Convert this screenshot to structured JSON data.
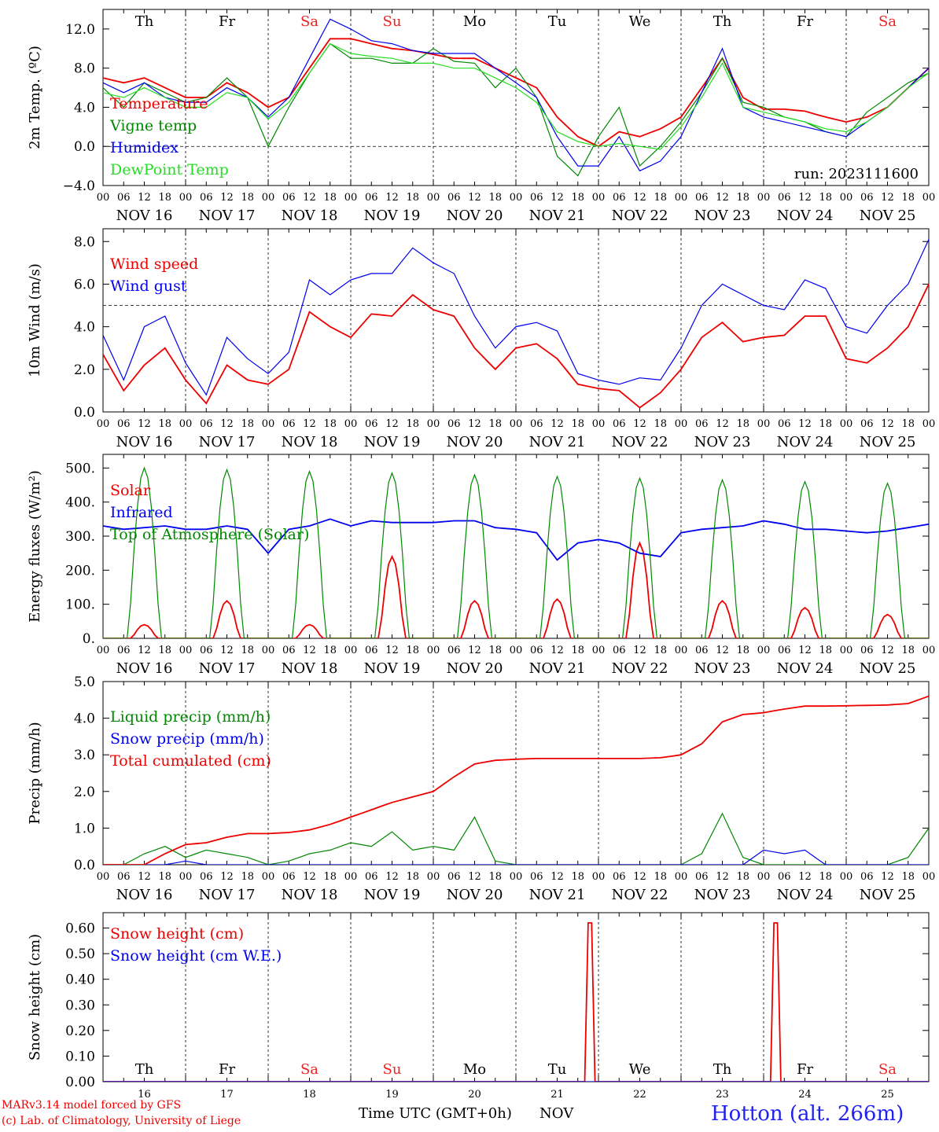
{
  "footer": {
    "credit_line1": "MARv3.14 model forced by GFS",
    "credit_line2": "(c) Lab. of Climatology, University of Liege",
    "xlabel": "Time UTC (GMT+0h)",
    "month": "NOV",
    "station": "Hotton (alt. 266m)"
  },
  "colors": {
    "red": "#ee0000",
    "green": "#008800",
    "blue": "#0000ee",
    "lightgreen": "#22dd22",
    "weekend": "#ee2222"
  },
  "chart_data": [
    {
      "type": "line",
      "id": "temperature",
      "ylabel": "2m Temp. (ºC)",
      "ylim": [
        -4,
        14
      ],
      "yticks": [
        -4,
        0,
        4,
        8,
        12
      ],
      "ytick_labels": [
        "−4.0",
        "0.0",
        "4.0",
        "8.0",
        "12.0"
      ],
      "ref_line": 0,
      "weekdays": [
        "Th",
        "Fr",
        "Sa",
        "Su",
        "Mo",
        "Tu",
        "We",
        "Th",
        "Fr",
        "Sa"
      ],
      "weekend_days": [
        2,
        3,
        9
      ],
      "day_labels": [
        "NOV 16",
        "NOV 17",
        "NOV 18",
        "NOV 19",
        "NOV 20",
        "NOV 21",
        "NOV 22",
        "NOV 23",
        "NOV 24",
        "NOV 25"
      ],
      "hour_labels": [
        "00",
        "06",
        "12",
        "18"
      ],
      "annotation": "run: 2023111600",
      "x_hours": [
        0,
        6,
        12,
        18,
        24,
        30,
        36,
        42,
        48,
        54,
        60,
        66,
        72,
        78,
        84,
        90,
        96,
        102,
        108,
        114,
        120,
        126,
        132,
        138,
        144,
        150,
        156,
        162,
        168,
        174,
        180,
        186,
        192,
        198,
        204,
        210,
        216,
        222,
        228,
        234,
        240
      ],
      "series": [
        {
          "name": "Temperature",
          "color": "red",
          "values": [
            7.0,
            6.5,
            7.0,
            6.0,
            5.0,
            5.0,
            6.5,
            5.5,
            4.0,
            5.0,
            8.0,
            11.0,
            11.0,
            10.5,
            10.0,
            9.8,
            9.4,
            9.0,
            9.0,
            8.0,
            7.0,
            6.0,
            3.0,
            1.0,
            0.0,
            1.5,
            1.0,
            1.8,
            3.0,
            6.0,
            9.0,
            5.0,
            3.8,
            3.8,
            3.6,
            3.0,
            2.5,
            3.0,
            4.0,
            6.0,
            8.0
          ]
        },
        {
          "name": "Vigne temp",
          "color": "green",
          "values": [
            6.0,
            4.0,
            6.5,
            5.5,
            4.5,
            5.0,
            7.0,
            5.0,
            0.0,
            4.0,
            7.5,
            10.5,
            9.0,
            9.0,
            8.5,
            8.5,
            10.0,
            8.7,
            8.5,
            6.0,
            8.0,
            5.0,
            -1.0,
            -3.0,
            1.0,
            4.0,
            -2.0,
            0.0,
            2.5,
            5.5,
            9.0,
            4.5,
            4.0,
            3.0,
            2.5,
            1.5,
            1.0,
            3.5,
            5.0,
            6.5,
            7.5
          ]
        },
        {
          "name": "Humidex",
          "color": "blue",
          "values": [
            6.5,
            5.5,
            6.5,
            5.0,
            4.5,
            4.5,
            6.0,
            5.0,
            3.0,
            5.0,
            9.0,
            13.0,
            12.0,
            10.8,
            10.5,
            9.8,
            9.5,
            9.5,
            9.5,
            8.0,
            6.5,
            5.0,
            1.0,
            -2.0,
            -2.0,
            1.0,
            -2.5,
            -1.5,
            1.0,
            5.5,
            10.0,
            4.0,
            3.0,
            2.5,
            2.0,
            1.5,
            1.0,
            2.5,
            4.0,
            6.0,
            8.0
          ]
        },
        {
          "name": "DewPoint Temp",
          "color": "lightgreen",
          "values": [
            5.5,
            5.0,
            6.0,
            5.0,
            4.0,
            4.0,
            5.5,
            5.0,
            2.8,
            4.5,
            7.5,
            10.5,
            9.5,
            9.2,
            9.0,
            8.5,
            8.5,
            8.0,
            8.0,
            7.0,
            6.0,
            4.5,
            1.5,
            0.5,
            0.0,
            0.3,
            0.0,
            -0.3,
            2.0,
            5.0,
            8.5,
            4.0,
            3.5,
            3.0,
            2.5,
            1.8,
            1.5,
            2.5,
            4.0,
            6.0,
            7.5
          ]
        }
      ]
    },
    {
      "type": "line",
      "id": "wind",
      "ylabel": "10m Wind (m/s)",
      "ylim": [
        0,
        8.6
      ],
      "yticks": [
        0,
        2,
        4,
        6,
        8
      ],
      "ytick_labels": [
        "0.0",
        "2.0",
        "4.0",
        "6.0",
        "8.0"
      ],
      "ref_line": 5,
      "day_labels": [
        "NOV 16",
        "NOV 17",
        "NOV 18",
        "NOV 19",
        "NOV 20",
        "NOV 21",
        "NOV 22",
        "NOV 23",
        "NOV 24",
        "NOV 25"
      ],
      "hour_labels": [
        "00",
        "06",
        "12",
        "18"
      ],
      "x_hours": [
        0,
        6,
        12,
        18,
        24,
        30,
        36,
        42,
        48,
        54,
        60,
        66,
        72,
        78,
        84,
        90,
        96,
        102,
        108,
        114,
        120,
        126,
        132,
        138,
        144,
        150,
        156,
        162,
        168,
        174,
        180,
        186,
        192,
        198,
        204,
        210,
        216,
        222,
        228,
        234,
        240
      ],
      "series": [
        {
          "name": "Wind speed",
          "color": "red",
          "values": [
            2.7,
            1.0,
            2.2,
            3.0,
            1.5,
            0.4,
            2.2,
            1.5,
            1.3,
            2.0,
            4.7,
            4.0,
            3.5,
            4.6,
            4.5,
            5.5,
            4.8,
            4.5,
            3.0,
            2.0,
            3.0,
            3.2,
            2.5,
            1.3,
            1.1,
            1.0,
            0.2,
            0.9,
            2.0,
            3.5,
            4.2,
            3.3,
            3.5,
            3.6,
            4.5,
            4.5,
            2.5,
            2.3,
            3.0,
            4.0,
            6.0
          ]
        },
        {
          "name": "Wind gust",
          "color": "blue",
          "values": [
            3.6,
            1.5,
            4.0,
            4.5,
            2.3,
            0.8,
            3.5,
            2.5,
            1.8,
            2.8,
            6.2,
            5.5,
            6.2,
            6.5,
            6.5,
            7.7,
            7.0,
            6.5,
            4.5,
            3.0,
            4.0,
            4.2,
            3.8,
            1.8,
            1.5,
            1.3,
            1.6,
            1.5,
            3.0,
            5.0,
            6.0,
            5.5,
            5.0,
            4.8,
            6.2,
            5.8,
            4.0,
            3.7,
            5.0,
            6.0,
            8.1
          ]
        }
      ]
    },
    {
      "type": "line",
      "id": "energy",
      "ylabel": "Energy fluxes (W/m²)",
      "ylim": [
        0,
        540
      ],
      "yticks": [
        0,
        100,
        200,
        300,
        400,
        500
      ],
      "ytick_labels": [
        "0.",
        "100.",
        "200.",
        "300.",
        "400.",
        "500."
      ],
      "day_labels": [
        "NOV 16",
        "NOV 17",
        "NOV 18",
        "NOV 19",
        "NOV 20",
        "NOV 21",
        "NOV 22",
        "NOV 23",
        "NOV 24",
        "NOV 25"
      ],
      "hour_labels": [
        "00",
        "06",
        "12",
        "18"
      ],
      "x_hours": [
        0,
        6,
        12,
        18,
        24,
        30,
        36,
        42,
        48,
        54,
        60,
        66,
        72,
        78,
        84,
        90,
        96,
        102,
        108,
        114,
        120,
        126,
        132,
        138,
        144,
        150,
        156,
        162,
        168,
        174,
        180,
        186,
        192,
        198,
        204,
        210,
        216,
        222,
        228,
        234,
        240
      ],
      "daily_peaks": {
        "solar": [
          40,
          110,
          40,
          240,
          110,
          115,
          280,
          110,
          90,
          70
        ],
        "toa": [
          500,
          495,
          490,
          485,
          480,
          475,
          470,
          465,
          460,
          455
        ]
      },
      "series": [
        {
          "name": "Solar",
          "color": "red",
          "values": []
        },
        {
          "name": "Infrared",
          "color": "blue",
          "values": [
            330,
            320,
            325,
            330,
            320,
            320,
            330,
            320,
            250,
            320,
            330,
            350,
            330,
            345,
            340,
            340,
            340,
            345,
            345,
            325,
            320,
            310,
            230,
            280,
            290,
            280,
            250,
            240,
            310,
            320,
            325,
            330,
            345,
            335,
            320,
            320,
            315,
            310,
            315,
            325,
            335
          ]
        },
        {
          "name": "Top of Atmosphere (Solar)",
          "color": "green",
          "values": []
        }
      ]
    },
    {
      "type": "line",
      "id": "precip",
      "ylabel": "Precip (mm/h)",
      "ylim": [
        0,
        5
      ],
      "yticks": [
        0,
        1,
        2,
        3,
        4,
        5
      ],
      "ytick_labels": [
        "0.0",
        "1.0",
        "2.0",
        "3.0",
        "4.0",
        "5.0"
      ],
      "day_labels": [
        "NOV 16",
        "NOV 17",
        "NOV 18",
        "NOV 19",
        "NOV 20",
        "NOV 21",
        "NOV 22",
        "NOV 23",
        "NOV 24",
        "NOV 25"
      ],
      "hour_labels": [
        "00",
        "06",
        "12",
        "18"
      ],
      "x_hours": [
        0,
        6,
        12,
        18,
        24,
        30,
        36,
        42,
        48,
        54,
        60,
        66,
        72,
        78,
        84,
        90,
        96,
        102,
        108,
        114,
        120,
        126,
        132,
        138,
        144,
        150,
        156,
        162,
        168,
        174,
        180,
        186,
        192,
        198,
        204,
        210,
        216,
        222,
        228,
        234,
        240
      ],
      "series": [
        {
          "name": "Liquid precip (mm/h)",
          "color": "green",
          "values": [
            0,
            0,
            0.3,
            0.5,
            0.2,
            0.4,
            0.3,
            0.2,
            0,
            0.1,
            0.3,
            0.4,
            0.6,
            0.5,
            0.9,
            0.4,
            0.5,
            0.4,
            1.3,
            0.1,
            0,
            0,
            0,
            0,
            0,
            0,
            0,
            0,
            0,
            0.3,
            1.4,
            0.2,
            0,
            0,
            0,
            0,
            0,
            0,
            0,
            0.2,
            1.0
          ]
        },
        {
          "name": "Snow precip (mm/h)",
          "color": "blue",
          "values": [
            0,
            0,
            0,
            0,
            0.1,
            0,
            0,
            0,
            0,
            0,
            0,
            0,
            0,
            0,
            0,
            0,
            0,
            0,
            0,
            0,
            0,
            0,
            0,
            0,
            0,
            0,
            0,
            0,
            0,
            0,
            0,
            0,
            0.4,
            0.3,
            0.4,
            0,
            0,
            0,
            0,
            0,
            0
          ]
        },
        {
          "name": "Total cumulated (cm)",
          "color": "red",
          "values": [
            0,
            0,
            0,
            0.3,
            0.55,
            0.6,
            0.75,
            0.85,
            0.85,
            0.88,
            0.95,
            1.1,
            1.3,
            1.5,
            1.7,
            1.85,
            2.0,
            2.4,
            2.75,
            2.85,
            2.88,
            2.9,
            2.9,
            2.9,
            2.9,
            2.9,
            2.9,
            2.92,
            3.0,
            3.3,
            3.9,
            4.1,
            4.15,
            4.25,
            4.33,
            4.33,
            4.34,
            4.35,
            4.36,
            4.4,
            4.6
          ]
        }
      ]
    },
    {
      "type": "line",
      "id": "snow",
      "ylabel": "Snow height (cm)",
      "ylim": [
        0,
        0.66
      ],
      "yticks": [
        0,
        0.1,
        0.2,
        0.3,
        0.4,
        0.5,
        0.6
      ],
      "ytick_labels": [
        "0.00",
        "0.10",
        "0.20",
        "0.30",
        "0.40",
        "0.50",
        "0.60"
      ],
      "weekdays": [
        "Th",
        "Fr",
        "Sa",
        "Su",
        "Mo",
        "Tu",
        "We",
        "Th",
        "Fr",
        "Sa"
      ],
      "weekend_days": [
        2,
        3,
        9
      ],
      "day_numbers": [
        "16",
        "17",
        "18",
        "19",
        "20",
        "21",
        "22",
        "23",
        "24",
        "25"
      ],
      "x_hours": [
        0,
        140,
        141,
        142,
        143,
        144,
        194,
        195,
        196,
        197,
        198,
        240
      ],
      "series": [
        {
          "name": "Snow height (cm)",
          "color": "red",
          "values": [
            0,
            0,
            0.62,
            0.62,
            0,
            0,
            0,
            0.62,
            0.62,
            0,
            0,
            0
          ]
        },
        {
          "name": "Snow height (cm W.E.)",
          "color": "blue",
          "values": [
            0,
            0,
            0,
            0,
            0,
            0,
            0,
            0,
            0,
            0,
            0,
            0
          ]
        }
      ]
    }
  ]
}
